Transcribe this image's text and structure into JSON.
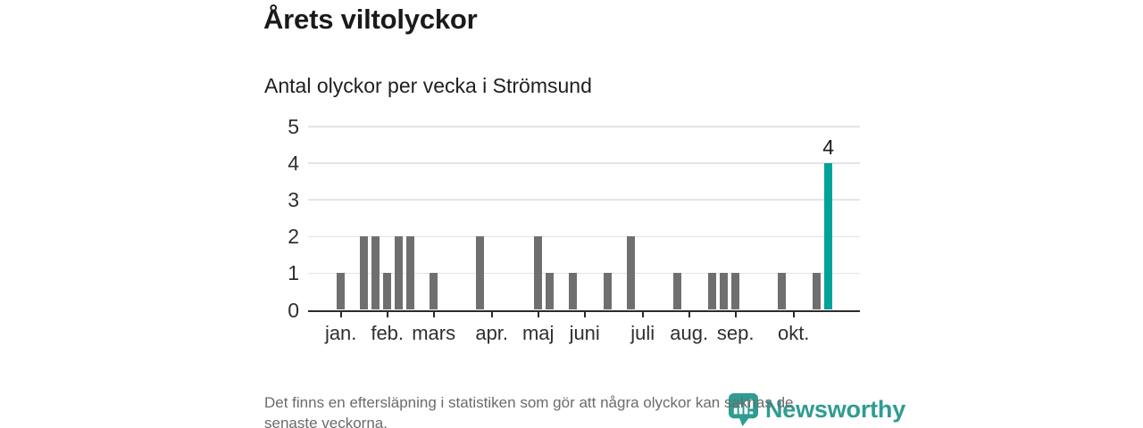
{
  "page": {
    "title": "Årets viltolyckor",
    "subtitle": "Antal olyckor per vecka i Strömsund",
    "footer_line1": "Det finns en eftersläpning i statistiken som gör att några olyckor kan saknas de",
    "footer_line2": "senaste veckorna.",
    "brand": "Newsworthy"
  },
  "colors": {
    "bar": "#6f6f6f",
    "highlight": "#00a29b",
    "grid": "#e4e4e4",
    "axis": "#2b2b2b",
    "title_text": "#1a1a1a",
    "muted_text": "#6b6b6b",
    "brand_teal": "#2f9c92"
  },
  "chart_data": {
    "type": "bar",
    "title": "Årets viltolyckor",
    "subtitle": "Antal olyckor per vecka i Strömsund",
    "xlabel": "",
    "ylabel": "",
    "ylim": [
      0,
      5
    ],
    "yticks": [
      0,
      1,
      2,
      3,
      4,
      5
    ],
    "x_unit": "week_of_year",
    "x_range_weeks": [
      1,
      45
    ],
    "grid": "horizontal",
    "legend": "none",
    "month_ticks": [
      {
        "label": "jan.",
        "week": 1
      },
      {
        "label": "feb.",
        "week": 5
      },
      {
        "label": "mars",
        "week": 9
      },
      {
        "label": "apr.",
        "week": 14
      },
      {
        "label": "maj",
        "week": 18
      },
      {
        "label": "juni",
        "week": 22
      },
      {
        "label": "juli",
        "week": 27
      },
      {
        "label": "aug.",
        "week": 31
      },
      {
        "label": "sep.",
        "week": 35
      },
      {
        "label": "okt.",
        "week": 40
      }
    ],
    "bars": [
      {
        "week": 1,
        "value": 1
      },
      {
        "week": 3,
        "value": 2
      },
      {
        "week": 4,
        "value": 2
      },
      {
        "week": 5,
        "value": 1
      },
      {
        "week": 6,
        "value": 2
      },
      {
        "week": 7,
        "value": 2
      },
      {
        "week": 9,
        "value": 1
      },
      {
        "week": 13,
        "value": 2
      },
      {
        "week": 18,
        "value": 2
      },
      {
        "week": 19,
        "value": 1
      },
      {
        "week": 21,
        "value": 1
      },
      {
        "week": 24,
        "value": 1
      },
      {
        "week": 26,
        "value": 2
      },
      {
        "week": 30,
        "value": 1
      },
      {
        "week": 33,
        "value": 1
      },
      {
        "week": 34,
        "value": 1
      },
      {
        "week": 35,
        "value": 1
      },
      {
        "week": 39,
        "value": 1
      },
      {
        "week": 42,
        "value": 1
      },
      {
        "week": 43,
        "value": 4,
        "highlight": true,
        "label": "4"
      }
    ]
  }
}
